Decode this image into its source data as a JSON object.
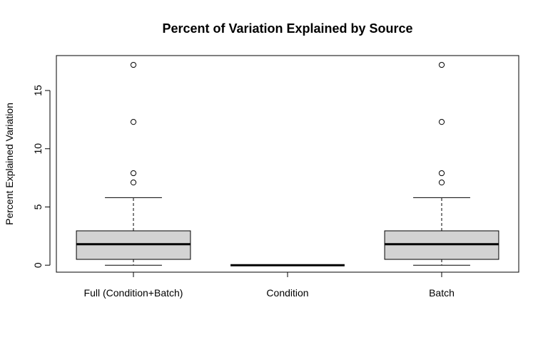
{
  "chart_data": {
    "type": "boxplot",
    "title": "Percent of Variation Explained by Source",
    "xlabel": "",
    "ylabel": "Percent Explained Variation",
    "ylim": [
      -0.6,
      18.0
    ],
    "yticks": [
      0,
      5,
      10,
      15
    ],
    "categories": [
      "Full (Condition+Batch)",
      "Condition",
      "Batch"
    ],
    "boxes": [
      {
        "name": "Full (Condition+Batch)",
        "whisker_low": 0.0,
        "q1": 0.5,
        "median": 1.8,
        "q3": 2.95,
        "whisker_high": 5.8,
        "outliers": [
          7.1,
          7.9,
          12.3,
          17.2
        ]
      },
      {
        "name": "Condition",
        "whisker_low": 0.0,
        "q1": 0.0,
        "median": 0.0,
        "q3": 0.0,
        "whisker_high": 0.0,
        "outliers": []
      },
      {
        "name": "Batch",
        "whisker_low": 0.0,
        "q1": 0.5,
        "median": 1.8,
        "q3": 2.95,
        "whisker_high": 5.8,
        "outliers": [
          7.1,
          7.9,
          12.3,
          17.2
        ]
      }
    ],
    "box_fill": "#d3d3d3",
    "grid": false,
    "legend": "none"
  }
}
